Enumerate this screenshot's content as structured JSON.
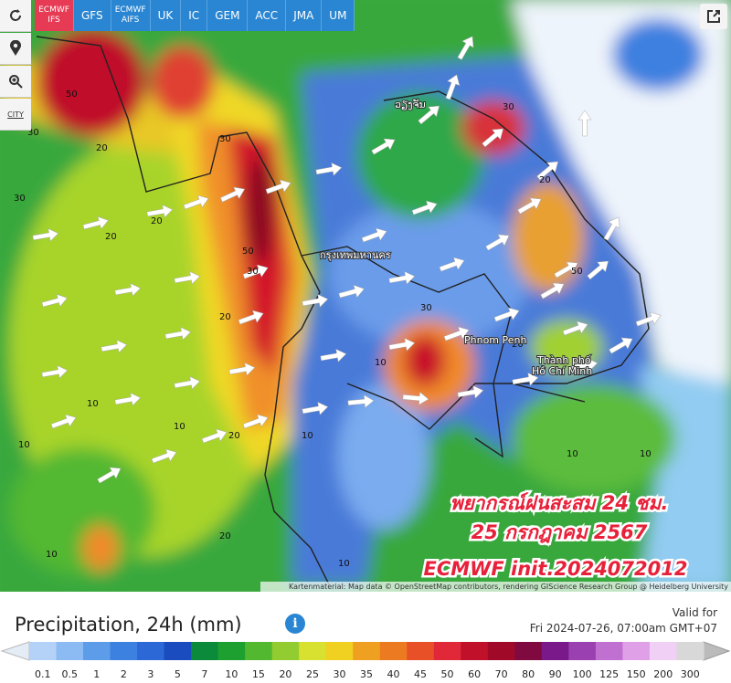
{
  "toolbar": {
    "tabs": [
      "ECMWF IFS",
      "GFS",
      "ECMWF AIFS",
      "UK",
      "IC",
      "GEM",
      "ACC",
      "JMA",
      "UM"
    ],
    "city_button": "CITY"
  },
  "map": {
    "place_labels": [
      "ວຽງຈັນ",
      "กรุงเทพมหานคร",
      "Phnom Penh",
      "Thành phố",
      "Hồ Chí Minh"
    ],
    "contour_labels": [
      30,
      50,
      20,
      30,
      20,
      20,
      10,
      10,
      20,
      30,
      50,
      30,
      10,
      20,
      10,
      20,
      10,
      10,
      30,
      30,
      50,
      20,
      10,
      20,
      10,
      10
    ],
    "attribution": "Kartenmaterial: Map data © OpenStreetMap contributors, rendering GIScience Research Group @ Heidelberg University"
  },
  "overlay": {
    "lines": [
      "พยากรณ์ฝนสะสม 24 ชม.",
      "25 กรกฎาคม 2567",
      "ECMWF init.2024072012"
    ]
  },
  "legend": {
    "title": "Precipitation, 24h (mm)",
    "info": "i",
    "valid_label": "Valid for",
    "valid_time": "Fri 2024-07-26, 07:00am GMT+07",
    "scale": [
      0.1,
      0.5,
      1,
      2,
      3,
      5,
      7,
      10,
      15,
      20,
      25,
      30,
      35,
      40,
      45,
      50,
      60,
      70,
      80,
      90,
      100,
      125,
      150,
      200,
      300
    ],
    "colors": [
      "#b4d2f8",
      "#8cbaf2",
      "#5c9ce8",
      "#3c80e0",
      "#2c68d6",
      "#1a4cc0",
      "#0a8a3a",
      "#1ea030",
      "#52b830",
      "#92cc30",
      "#d8e030",
      "#f0d020",
      "#f0a020",
      "#ec7a20",
      "#e85028",
      "#e02838",
      "#c0102a",
      "#a00a28",
      "#800a40",
      "#7a1a8a",
      "#9a40b0",
      "#c070d0",
      "#e0a0e8",
      "#f0d0f4",
      "#d8d8d8"
    ]
  }
}
